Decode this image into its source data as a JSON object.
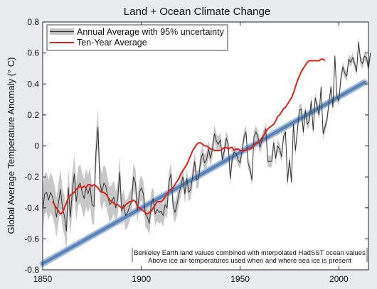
{
  "chart_data": {
    "type": "line",
    "title": "Land + Ocean Climate Change",
    "xlabel": "",
    "ylabel": "Global Average Temperature Anomaly (° C)",
    "xlim": [
      1850,
      2015
    ],
    "ylim": [
      -0.8,
      0.8
    ],
    "xticks": [
      1850,
      1900,
      1950,
      2000
    ],
    "yticks": [
      -0.8,
      -0.6,
      -0.4,
      -0.2,
      0,
      0.2,
      0.4,
      0.6,
      0.8
    ],
    "grid": false,
    "legend_position": "top-left",
    "legend": [
      "Annual Average with 95% uncertainty",
      "Ten-Year Average"
    ],
    "annotation": [
      "Berkeley Earth land values combined with interpolated HadSST ocean values",
      "Above ice air temperatures used when and where sea ice is present"
    ],
    "colors": {
      "annual": "#333333",
      "band": "#bdbdbd",
      "ten_year": "#e0201b",
      "trend": "#5b83b5",
      "trend_halo": "#a9bfd9",
      "background": "#e9ebee"
    },
    "series": [
      {
        "name": "Annual Average with 95% uncertainty",
        "x_start": 1850,
        "values": [
          -0.42,
          -0.31,
          -0.3,
          -0.35,
          -0.3,
          -0.33,
          -0.38,
          -0.46,
          -0.37,
          -0.28,
          -0.4,
          -0.45,
          -0.55,
          -0.27,
          -0.46,
          -0.3,
          -0.18,
          -0.36,
          -0.26,
          -0.24,
          -0.3,
          -0.34,
          -0.27,
          -0.31,
          -0.26,
          -0.38,
          -0.39,
          -0.04,
          0.12,
          -0.24,
          -0.3,
          -0.24,
          -0.26,
          -0.33,
          -0.38,
          -0.36,
          -0.33,
          -0.4,
          -0.34,
          -0.17,
          -0.42,
          -0.38,
          -0.45,
          -0.43,
          -0.39,
          -0.36,
          -0.2,
          -0.24,
          -0.42,
          -0.3,
          -0.27,
          -0.31,
          -0.44,
          -0.46,
          -0.5,
          -0.37,
          -0.34,
          -0.44,
          -0.41,
          -0.43,
          -0.42,
          -0.45,
          -0.38,
          -0.4,
          -0.23,
          -0.18,
          -0.38,
          -0.43,
          -0.38,
          -0.31,
          -0.26,
          -0.2,
          -0.31,
          -0.21,
          -0.3,
          -0.28,
          -0.19,
          -0.1,
          -0.22,
          -0.21,
          -0.09,
          -0.05,
          -0.11,
          -0.09,
          -0.02,
          -0.08,
          -0.02,
          0.08,
          0.03,
          0.01,
          0.04,
          -0.09,
          -0.03,
          0.05,
          0.01,
          -0.21,
          -0.08,
          -0.04,
          -0.05,
          -0.09,
          -0.11,
          -0.03,
          0.06,
          0.09,
          -0.11,
          -0.15,
          -0.22,
          0.06,
          0.09,
          0.06,
          -0.01,
          0.03,
          0.07,
          0.11,
          -0.1,
          -0.1,
          -0.1,
          0.02,
          -0.08,
          0.0,
          -0.02,
          -0.07,
          0.06,
          0.09,
          -0.23,
          -0.09,
          -0.23,
          0.14,
          -0.03,
          0.1,
          0.23,
          0.24,
          0.09,
          0.23,
          0.14,
          0.16,
          0.29,
          0.1,
          0.31,
          0.26,
          0.2,
          0.38,
          0.08,
          0.12,
          0.17,
          0.28,
          0.38,
          0.25,
          0.58,
          0.32,
          0.29,
          0.43,
          0.51,
          0.47,
          0.45,
          0.56,
          0.54,
          0.57,
          0.53,
          0.48,
          0.67,
          0.55,
          0.53,
          0.58,
          0.57,
          0.5,
          0.6
        ]
      },
      {
        "name": "Ten-Year Average",
        "x_start": 1855,
        "values": [
          -0.36,
          -0.38,
          -0.4,
          -0.42,
          -0.44,
          -0.43,
          -0.4,
          -0.37,
          -0.33,
          -0.32,
          -0.31,
          -0.3,
          -0.28,
          -0.27,
          -0.26,
          -0.27,
          -0.26,
          -0.27,
          -0.25,
          -0.25,
          -0.26,
          -0.25,
          -0.26,
          -0.27,
          -0.29,
          -0.3,
          -0.3,
          -0.31,
          -0.33,
          -0.35,
          -0.36,
          -0.37,
          -0.38,
          -0.38,
          -0.39,
          -0.4,
          -0.4,
          -0.38,
          -0.37,
          -0.36,
          -0.36,
          -0.35,
          -0.36,
          -0.39,
          -0.4,
          -0.41,
          -0.42,
          -0.43,
          -0.44,
          -0.43,
          -0.42,
          -0.4,
          -0.38,
          -0.36,
          -0.36,
          -0.36,
          -0.35,
          -0.33,
          -0.31,
          -0.29,
          -0.28,
          -0.27,
          -0.25,
          -0.23,
          -0.21,
          -0.18,
          -0.16,
          -0.14,
          -0.12,
          -0.09,
          -0.06,
          -0.03,
          -0.01,
          0.01,
          0.02,
          0.02,
          0.01,
          0.0,
          0.0,
          -0.01,
          -0.02,
          -0.02,
          -0.03,
          -0.03,
          -0.03,
          -0.03,
          -0.02,
          -0.01,
          -0.01,
          -0.02,
          -0.01,
          -0.01,
          -0.03,
          -0.02,
          -0.02,
          -0.03,
          -0.03,
          -0.03,
          -0.03,
          -0.02,
          -0.02,
          -0.01,
          0.0,
          0.02,
          0.02,
          0.03,
          0.05,
          0.07,
          0.09,
          0.11,
          0.12,
          0.13,
          0.14,
          0.16,
          0.19,
          0.2,
          0.22,
          0.24,
          0.25,
          0.27,
          0.29,
          0.31,
          0.34,
          0.38,
          0.42,
          0.45,
          0.48,
          0.5,
          0.52,
          0.54,
          0.55,
          0.55,
          0.55,
          0.55,
          0.55,
          0.55,
          0.56,
          0.56,
          0.55
        ]
      },
      {
        "name": "",
        "type": "trend",
        "x": [
          1850,
          2013
        ],
        "values": [
          -0.76,
          0.41
        ]
      }
    ],
    "uncertainty_halfwidth": [
      {
        "x": 1850,
        "value": 0.13
      },
      {
        "x": 1880,
        "value": 0.12
      },
      {
        "x": 1900,
        "value": 0.08
      },
      {
        "x": 1950,
        "value": 0.04
      },
      {
        "x": 2013,
        "value": 0.03
      }
    ]
  }
}
